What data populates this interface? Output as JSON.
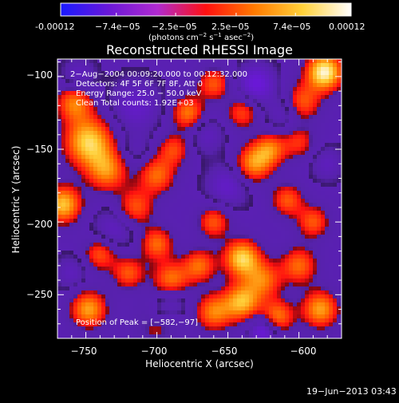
{
  "colorbar": {
    "ticks": [
      "-0.00012",
      "−7.4e−05",
      "−2.5e−05",
      "2.5e−05",
      "7.4e−05",
      "0.00012"
    ],
    "range": [
      -0.00012,
      0.00012
    ],
    "units_text": "(photons cm",
    "units_exp1": "−2",
    "units_mid": " s",
    "units_exp2": "−1",
    "units_mid2": " asec",
    "units_exp3": "−2",
    "units_end": ")",
    "colors": [
      "#1a1aff",
      "#6a18d8",
      "#b02ad0",
      "#ff1010",
      "#ff7a00",
      "#ffd13a",
      "#ffffff"
    ]
  },
  "chart": {
    "title": "Reconstructed RHESSI Image",
    "xlabel": "Heliocentric X (arcsec)",
    "ylabel": "Heliocentric Y (arcsec)",
    "xticks": [
      "−750",
      "−700",
      "−650",
      "−600"
    ],
    "yticks": [
      "−100",
      "−150",
      "−200",
      "−250"
    ],
    "info": {
      "time": "2−Aug−2004 00:09:20.000 to 00:12:32.000",
      "detectors": "Detectors: 4F 5F 6F 7F 8F, Att 0",
      "energy": "Energy Range: 25.0 − 50.0 keV",
      "clean": "Clean     Total counts: 1.92E+03"
    },
    "peak_text": "Position of Peak = [−582,−97]"
  },
  "footer": {
    "date": "19−Jun−2013 03:43"
  },
  "chart_data": {
    "type": "heatmap",
    "title": "Reconstructed RHESSI Image",
    "xlabel": "Heliocentric X (arcsec)",
    "ylabel": "Heliocentric Y (arcsec)",
    "xlim": [
      -770,
      -570
    ],
    "ylim": [
      -280,
      -88
    ],
    "xticks": [
      -750,
      -700,
      -650,
      -600
    ],
    "yticks": [
      -100,
      -150,
      -200,
      -250
    ],
    "colorbar_range": [
      -0.00012,
      0.00012
    ],
    "colorbar_ticks": [
      -0.00012,
      -7.4e-05,
      -2.5e-05,
      2.5e-05,
      7.4e-05,
      0.00012
    ],
    "peak_position": [
      -582,
      -97
    ],
    "blobs": [
      {
        "x": -582,
        "y": -97,
        "v": 1.0,
        "s": 9
      },
      {
        "x": -598,
        "y": -118,
        "v": 0.55,
        "s": 9
      },
      {
        "x": -748,
        "y": -145,
        "v": 0.85,
        "s": 12
      },
      {
        "x": -758,
        "y": -118,
        "v": 0.6,
        "s": 9
      },
      {
        "x": -766,
        "y": -188,
        "v": 0.8,
        "s": 9
      },
      {
        "x": -735,
        "y": -165,
        "v": 0.6,
        "s": 10
      },
      {
        "x": -715,
        "y": -190,
        "v": 0.5,
        "s": 9
      },
      {
        "x": -700,
        "y": -168,
        "v": 0.55,
        "s": 9
      },
      {
        "x": -688,
        "y": -150,
        "v": 0.45,
        "s": 8
      },
      {
        "x": -678,
        "y": -125,
        "v": 0.6,
        "s": 8
      },
      {
        "x": -660,
        "y": -105,
        "v": 0.5,
        "s": 8
      },
      {
        "x": -640,
        "y": -125,
        "v": 0.45,
        "s": 8
      },
      {
        "x": -632,
        "y": -160,
        "v": 0.65,
        "s": 9
      },
      {
        "x": -620,
        "y": -150,
        "v": 0.55,
        "s": 8
      },
      {
        "x": -608,
        "y": -185,
        "v": 0.5,
        "s": 8
      },
      {
        "x": -590,
        "y": -200,
        "v": 0.5,
        "s": 8
      },
      {
        "x": -600,
        "y": -230,
        "v": 0.55,
        "s": 9
      },
      {
        "x": -625,
        "y": -240,
        "v": 0.55,
        "s": 9
      },
      {
        "x": -640,
        "y": -225,
        "v": 0.85,
        "s": 9
      },
      {
        "x": -660,
        "y": -200,
        "v": 0.5,
        "s": 8
      },
      {
        "x": -670,
        "y": -230,
        "v": 0.55,
        "s": 8
      },
      {
        "x": -690,
        "y": -240,
        "v": 0.6,
        "s": 9
      },
      {
        "x": -700,
        "y": -215,
        "v": 0.55,
        "s": 8
      },
      {
        "x": -720,
        "y": -235,
        "v": 0.5,
        "s": 8
      },
      {
        "x": -740,
        "y": -222,
        "v": 0.5,
        "s": 8
      },
      {
        "x": -748,
        "y": -260,
        "v": 0.7,
        "s": 9
      },
      {
        "x": -700,
        "y": -268,
        "v": 0.55,
        "s": 9
      },
      {
        "x": -660,
        "y": -262,
        "v": 0.6,
        "s": 9
      },
      {
        "x": -640,
        "y": -255,
        "v": 0.75,
        "s": 9
      },
      {
        "x": -615,
        "y": -265,
        "v": 0.6,
        "s": 8
      },
      {
        "x": -585,
        "y": -260,
        "v": 0.7,
        "s": 9
      },
      {
        "x": -600,
        "y": -145,
        "v": 0.4,
        "s": 8
      },
      {
        "x": -715,
        "y": -120,
        "v": -0.35,
        "s": 12
      },
      {
        "x": -630,
        "y": -105,
        "v": -0.5,
        "s": 9
      },
      {
        "x": -610,
        "y": -125,
        "v": -0.3,
        "s": 9
      },
      {
        "x": -650,
        "y": -175,
        "v": -0.35,
        "s": 10
      },
      {
        "x": -730,
        "y": -205,
        "v": -0.3,
        "s": 10
      },
      {
        "x": -690,
        "y": -255,
        "v": -0.35,
        "s": 8
      },
      {
        "x": -700,
        "y": -265,
        "v": -0.4,
        "s": 7
      },
      {
        "x": -625,
        "y": -275,
        "v": -0.55,
        "s": 7
      },
      {
        "x": -755,
        "y": -100,
        "v": -0.3,
        "s": 8
      },
      {
        "x": -665,
        "y": -140,
        "v": -0.25,
        "s": 9
      },
      {
        "x": -715,
        "y": -150,
        "v": -0.2,
        "s": 8
      },
      {
        "x": -580,
        "y": -160,
        "v": -0.25,
        "s": 8
      },
      {
        "x": -760,
        "y": -235,
        "v": -0.25,
        "s": 8
      }
    ]
  }
}
